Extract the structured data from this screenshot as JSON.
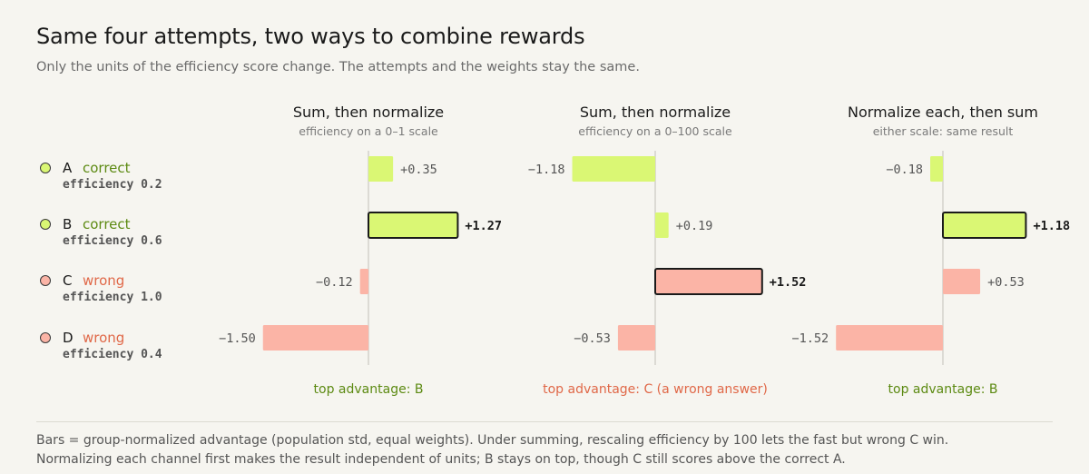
{
  "title": "Same four attempts, two ways to combine rewards",
  "subtitle": "Only the units of the efficiency score change. The attempts and the weights stay the same.",
  "colors": {
    "correct_fill": "#daf774",
    "wrong_fill": "#fbb4a6",
    "correct_text": "#5c8a12",
    "wrong_text": "#e06848",
    "axis": "#d4d2ca",
    "value_text": "#555555",
    "highlight_text": "#1a1a1a",
    "highlight_border": "#1a1a1a"
  },
  "rows": [
    {
      "letter": "A",
      "verdict": "correct",
      "efficiency": "efficiency 0.2",
      "status": "correct"
    },
    {
      "letter": "B",
      "verdict": "correct",
      "efficiency": "efficiency 0.6",
      "status": "correct"
    },
    {
      "letter": "C",
      "verdict": "wrong",
      "efficiency": "efficiency 1.0",
      "status": "wrong"
    },
    {
      "letter": "D",
      "verdict": "wrong",
      "efficiency": "efficiency 0.4",
      "status": "wrong"
    }
  ],
  "chart_data": [
    {
      "type": "bar",
      "orientation": "horizontal",
      "title": "Sum, then normalize",
      "subtitle": "efficiency on a 0–1 scale",
      "categories": [
        "A",
        "B",
        "C",
        "D"
      ],
      "values": [
        0.35,
        1.27,
        -0.12,
        -1.5
      ],
      "labels": [
        "+0.35",
        "+1.27",
        "−0.12",
        "−1.50"
      ],
      "top_index": 1,
      "xlim": [
        -1.55,
        1.55
      ],
      "grid": false,
      "top_label": "top advantage: B",
      "top_label_status": "correct"
    },
    {
      "type": "bar",
      "orientation": "horizontal",
      "title": "Sum, then normalize",
      "subtitle": "efficiency on a 0–100 scale",
      "categories": [
        "A",
        "B",
        "C",
        "D"
      ],
      "values": [
        -1.18,
        0.19,
        1.52,
        -0.53
      ],
      "labels": [
        "−1.18",
        "+0.19",
        "+1.52",
        "−0.53"
      ],
      "top_index": 2,
      "xlim": [
        -1.55,
        1.55
      ],
      "grid": false,
      "top_label": "top advantage: C (a wrong answer)",
      "top_label_status": "wrong"
    },
    {
      "type": "bar",
      "orientation": "horizontal",
      "title": "Normalize each, then sum",
      "subtitle": "either scale: same result",
      "categories": [
        "A",
        "B",
        "C",
        "D"
      ],
      "values": [
        -0.18,
        1.18,
        0.53,
        -1.52
      ],
      "labels": [
        "−0.18",
        "+1.18",
        "+0.53",
        "−1.52"
      ],
      "top_index": 1,
      "xlim": [
        -1.55,
        1.55
      ],
      "grid": false,
      "top_label": "top advantage: B",
      "top_label_status": "correct"
    }
  ],
  "footnotes": [
    "Bars = group-normalized advantage (population std, equal weights). Under summing, rescaling efficiency by 100 lets the fast but wrong C win.",
    "Normalizing each channel first makes the result independent of units; B stays on top, though C still scores above the correct A."
  ]
}
